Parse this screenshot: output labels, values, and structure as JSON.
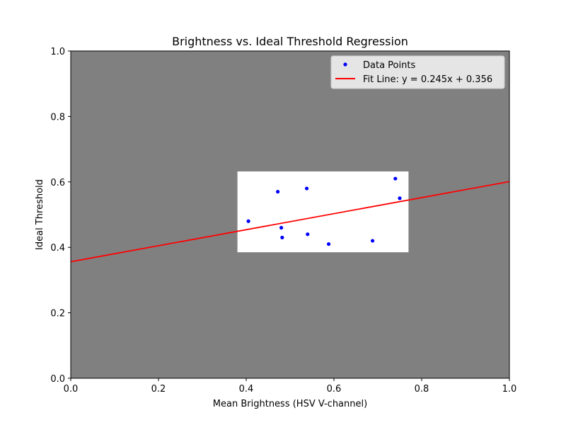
{
  "chart_data": {
    "type": "scatter",
    "title": "Brightness vs. Ideal Threshold Regression",
    "xlabel": "Mean Brightness (HSV V-channel)",
    "ylabel": "Ideal Threshold",
    "xlim": [
      0.0,
      1.0
    ],
    "ylim": [
      0.0,
      1.0
    ],
    "xticks": [
      "0.0",
      "0.2",
      "0.4",
      "0.6",
      "0.8",
      "1.0"
    ],
    "yticks": [
      "0.0",
      "0.2",
      "0.4",
      "0.6",
      "0.8",
      "1.0"
    ],
    "grid": false,
    "legend_position": "top-right",
    "background_color": "#808080",
    "highlight_region": {
      "x": [
        0.38,
        0.77
      ],
      "y": [
        0.385,
        0.632
      ],
      "color": "#ffffff"
    },
    "series": [
      {
        "name": "Data Points",
        "kind": "scatter",
        "color": "#0000ff",
        "points": [
          [
            0.405,
            0.48
          ],
          [
            0.472,
            0.57
          ],
          [
            0.48,
            0.46
          ],
          [
            0.482,
            0.43
          ],
          [
            0.538,
            0.58
          ],
          [
            0.54,
            0.44
          ],
          [
            0.588,
            0.41
          ],
          [
            0.688,
            0.42
          ],
          [
            0.74,
            0.61
          ],
          [
            0.75,
            0.55
          ]
        ]
      },
      {
        "name": "Fit Line: y = 0.245x + 0.356",
        "kind": "line",
        "color": "#ff0000",
        "slope": 0.245,
        "intercept": 0.356
      }
    ]
  }
}
